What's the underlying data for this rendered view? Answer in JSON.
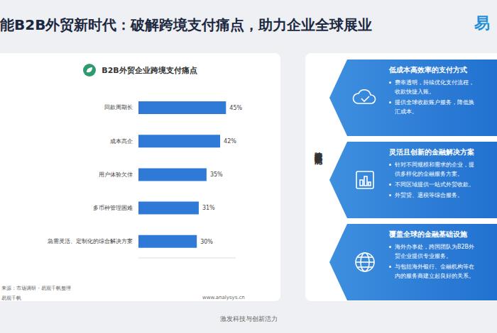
{
  "chart_data": {
    "type": "bar",
    "title": "B2B外贸企业跨境支付痛点",
    "orientation": "horizontal",
    "categories": [
      "回款周期长",
      "成本高企",
      "用户体验欠佳",
      "多币种管理困难",
      "急需灵活、定制化的综合解决方案"
    ],
    "values": [
      45,
      42,
      35,
      31,
      30
    ],
    "value_labels": [
      "45%",
      "42%",
      "35%",
      "31%",
      "30%"
    ],
    "color": "#2f7ad6",
    "xlim": [
      0,
      50
    ],
    "data_labels": true,
    "tick_labels": "y",
    "grid": false
  },
  "page": {
    "title": "能B2B外贸新时代：破解跨境支付痛点，助力企业全球展业",
    "logo": "易",
    "source": "来源：市场调研・易观千帆整理",
    "brand": "易观千帆",
    "website": "www.analysys.cn",
    "footer": "激发科技与创新活力",
    "panel": {
      "label": "跨境支付厂商赋能",
      "cards": [
        {
          "title": "低成本高效率的支付方式",
          "bullets": [
            [
              "费率透明，持续优化支付流程，",
              "收款快捷入账。"
            ],
            [
              "提供全球收款账户服务，降低换",
              "汇成本。"
            ]
          ]
        },
        {
          "title": "灵活且创新的金融解决方案",
          "bullets": [
            [
              "针对不同规模和需求的企业，提",
              "供多样化的金融服务方案。"
            ],
            [
              "不同区域提供一站式外贸收款。"
            ],
            [
              "外贸贷、退税等综合服务。"
            ]
          ]
        },
        {
          "title": "覆盖全球的金融基础设施",
          "bullets": [
            [
              "海外办事处，跨国团队为B2B外",
              "贸企业提供专业服务。"
            ],
            [
              "与包括海外银行、金融机构等在",
              "内的服务商建立起良好的关系。"
            ]
          ]
        }
      ]
    }
  }
}
